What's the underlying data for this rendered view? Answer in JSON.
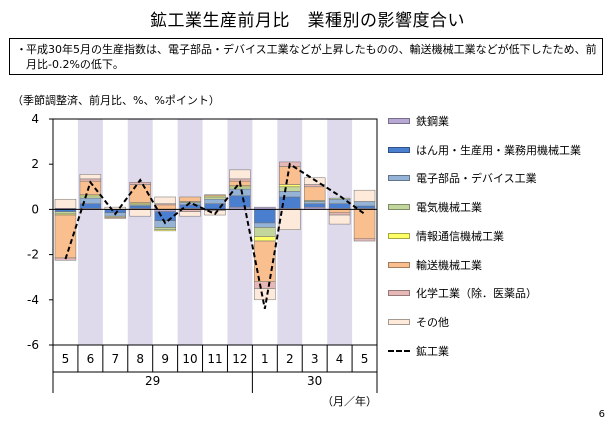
{
  "page": {
    "title": "鉱工業生産前月比　業種別の影響度合い",
    "note_bullet": "・",
    "note_text": "平成30年5月の生産指数は、電子部品・デバイス工業などが上昇したものの、輸送機械工業などが低下したため、前月比-0.2%の低下。",
    "units": "（季節調整済、前月比、%、%ポイント）",
    "page_number": "6"
  },
  "chart_data": {
    "type": "bar",
    "stacked": true,
    "categories": [
      "5",
      "6",
      "7",
      "8",
      "9",
      "10",
      "11",
      "12",
      "1",
      "2",
      "3",
      "4",
      "5"
    ],
    "year_labels": [
      {
        "label": "29",
        "from": 0,
        "to": 7
      },
      {
        "label": "30",
        "from": 8,
        "to": 12
      }
    ],
    "xlabel": "（月／年）",
    "ylim": [
      -6,
      4
    ],
    "yticks": [
      -6,
      -4,
      -2,
      0,
      2,
      4
    ],
    "shaded_categories": [
      1,
      3,
      5,
      7,
      9,
      11
    ],
    "series": [
      {
        "name": "鉄鋼業",
        "color": "#b8a8d4",
        "values": [
          0.05,
          0.05,
          0.0,
          0.05,
          -0.1,
          0.05,
          0.0,
          0.1,
          0.1,
          0.05,
          0.1,
          0.05,
          0.05
        ]
      },
      {
        "name": "はん用・生産用・業務用機械工業",
        "color": "#4a7fd0",
        "values": [
          -0.1,
          0.2,
          -0.15,
          0.1,
          -0.4,
          0.15,
          0.25,
          0.5,
          -0.6,
          0.5,
          0.15,
          0.2,
          0.1
        ]
      },
      {
        "name": "電子部品・デバイス工業",
        "color": "#95b3d7",
        "values": [
          0.0,
          0.25,
          -0.15,
          0.05,
          -0.3,
          0.1,
          0.2,
          0.3,
          -0.2,
          0.25,
          0.1,
          0.2,
          0.2
        ]
      },
      {
        "name": "電気機械工業",
        "color": "#c3d69b",
        "values": [
          -0.1,
          0.1,
          -0.05,
          0.05,
          -0.1,
          0.05,
          0.1,
          0.1,
          -0.4,
          0.2,
          0.05,
          0.05,
          0.0
        ]
      },
      {
        "name": "情報通信機械工業",
        "color": "#ffff66",
        "values": [
          -0.05,
          0.05,
          0.0,
          0.05,
          -0.05,
          0.0,
          0.05,
          0.05,
          -0.2,
          0.1,
          0.0,
          0.0,
          0.0
        ]
      },
      {
        "name": "輸送機械工業",
        "color": "#fabf8f",
        "values": [
          -1.9,
          0.6,
          -0.05,
          0.8,
          0.2,
          0.2,
          0.05,
          0.2,
          -1.8,
          0.8,
          0.6,
          -0.15,
          -1.3
        ]
      },
      {
        "name": "化学工業（除．医薬品）",
        "color": "#e6b8b7",
        "values": [
          -0.1,
          0.1,
          0.0,
          0.1,
          0.05,
          -0.1,
          -0.05,
          0.1,
          -0.3,
          0.2,
          0.1,
          -0.1,
          -0.1
        ]
      },
      {
        "name": "その他",
        "color": "#fdeada",
        "values": [
          0.4,
          0.2,
          0.1,
          -0.3,
          0.3,
          -0.2,
          -0.2,
          0.4,
          -0.5,
          -0.9,
          0.3,
          -0.4,
          0.5
        ]
      }
    ],
    "line_series": {
      "name": "鉱工業",
      "values": [
        -2.2,
        1.2,
        -0.2,
        1.3,
        -0.6,
        0.3,
        -0.2,
        1.2,
        -4.4,
        2.0,
        1.3,
        0.6,
        -0.2
      ]
    }
  }
}
